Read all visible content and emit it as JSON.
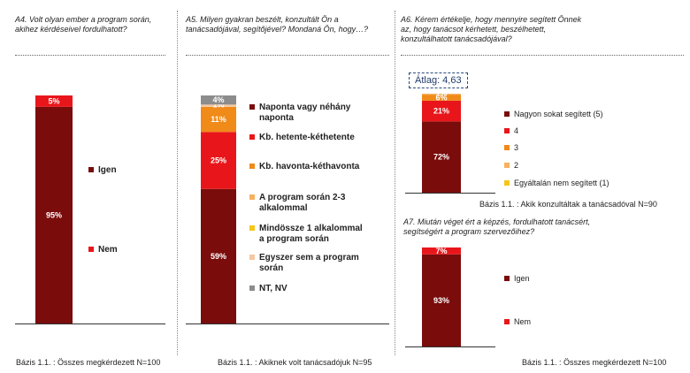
{
  "colors": {
    "darkred": "#7a0c0c",
    "red": "#e8161a",
    "orange": "#f08a18",
    "lightorange": "#f6b160",
    "yellow": "#f5c518",
    "peach": "#f4c8a2",
    "gray": "#8c8c8c"
  },
  "chart_data": [
    {
      "type": "stacked-bar",
      "title": "A4. Volt olyan ember a program során, akihez kérdéseivel fordulhatott?",
      "base": "Bázis 1.1. : Összes megkérdezett N=100",
      "series": [
        {
          "name": "Igen",
          "value": 95,
          "label": "95%",
          "color": "#7a0c0c"
        },
        {
          "name": "Nem",
          "value": 5,
          "label": "5%",
          "color": "#e8161a"
        }
      ]
    },
    {
      "type": "stacked-bar",
      "title": "A5. Milyen gyakran beszélt, konzultált Ön a tanácsadójával, segítőjével? Mondaná Ön, hogy…?",
      "base": "Bázis 1.1. : Akiknek volt tanácsadójuk N=95",
      "series": [
        {
          "name": "Naponta vagy néhány naponta",
          "value": 59,
          "label": "59%",
          "color": "#7a0c0c"
        },
        {
          "name": "Kb. hetente-kéthetente",
          "value": 25,
          "label": "25%",
          "color": "#e8161a"
        },
        {
          "name": "Kb. havonta-kéthavonta",
          "value": 11,
          "label": "11%",
          "color": "#f08a18"
        },
        {
          "name": "A program során 2-3 alkalommal",
          "value": 0,
          "label": "",
          "color": "#f6b160"
        },
        {
          "name": "Mindössze 1 alkalommal a program során",
          "value": 0,
          "label": "",
          "color": "#f5c518"
        },
        {
          "name": "Egyszer sem a program során",
          "value": 1,
          "label": "1%",
          "color": "#f4c8a2"
        },
        {
          "name": "NT, NV",
          "value": 4,
          "label": "4%",
          "color": "#8c8c8c"
        }
      ]
    },
    {
      "type": "stacked-bar",
      "title": "A6. Kérem értékelje, hogy mennyire segített Önnek az, hogy tanácsot kérhetett, beszélhetett, konzultálhatott tanácsadójával?",
      "base": "Bázis 1.1. : Akik konzultáltak a tanácsadóval N=90",
      "average": "Átlag: 4,63",
      "series": [
        {
          "name": "Nagyon sokat segített (5)",
          "value": 72,
          "label": "72%",
          "color": "#7a0c0c"
        },
        {
          "name": "4",
          "value": 21,
          "label": "21%",
          "color": "#e8161a"
        },
        {
          "name": "3",
          "value": 6,
          "label": "6%",
          "color": "#f08a18"
        },
        {
          "name": "2",
          "value": 1,
          "label": "1%",
          "color": "#f6b160"
        },
        {
          "name": "Egyáltalán nem segített (1)",
          "value": 0,
          "label": "",
          "color": "#f5c518"
        }
      ]
    },
    {
      "type": "stacked-bar",
      "title": "A7. Miután véget ért a képzés, fordulhatott tanácsért, segítségért a program szervezőihez?",
      "base": "Bázis 1.1. : Összes megkérdezett N=100",
      "series": [
        {
          "name": "Igen",
          "value": 93,
          "label": "93%",
          "color": "#7a0c0c"
        },
        {
          "name": "Nem",
          "value": 7,
          "label": "7%",
          "color": "#e8161a"
        }
      ]
    }
  ]
}
